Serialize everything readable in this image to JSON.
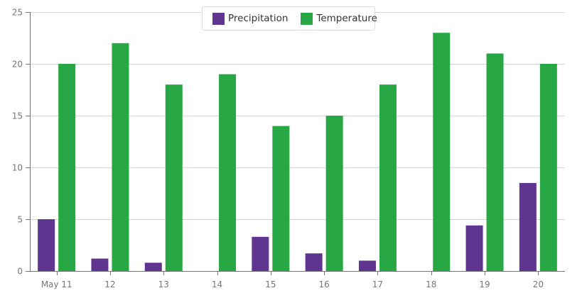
{
  "chart_data": {
    "type": "bar",
    "title": "",
    "xlabel": "",
    "ylabel": "",
    "categories": [
      "May 11",
      "12",
      "13",
      "14",
      "15",
      "16",
      "17",
      "18",
      "19",
      "20"
    ],
    "series": [
      {
        "name": "Precipitation",
        "color": "#5f3590",
        "values": [
          5.0,
          1.2,
          0.8,
          0,
          3.3,
          1.7,
          1.0,
          0,
          4.4,
          8.5
        ]
      },
      {
        "name": "Temperature",
        "color": "#28a745",
        "values": [
          20,
          22,
          18,
          19,
          14,
          15,
          18,
          23,
          21,
          20
        ]
      }
    ],
    "ylim": [
      0,
      25
    ],
    "yticks": [
      0,
      5,
      10,
      15,
      20,
      25
    ],
    "grid": true,
    "legend_position": "top-center"
  },
  "legend": {
    "items": [
      {
        "label": "Precipitation",
        "color": "#5f3590"
      },
      {
        "label": "Temperature",
        "color": "#28a745"
      }
    ]
  }
}
